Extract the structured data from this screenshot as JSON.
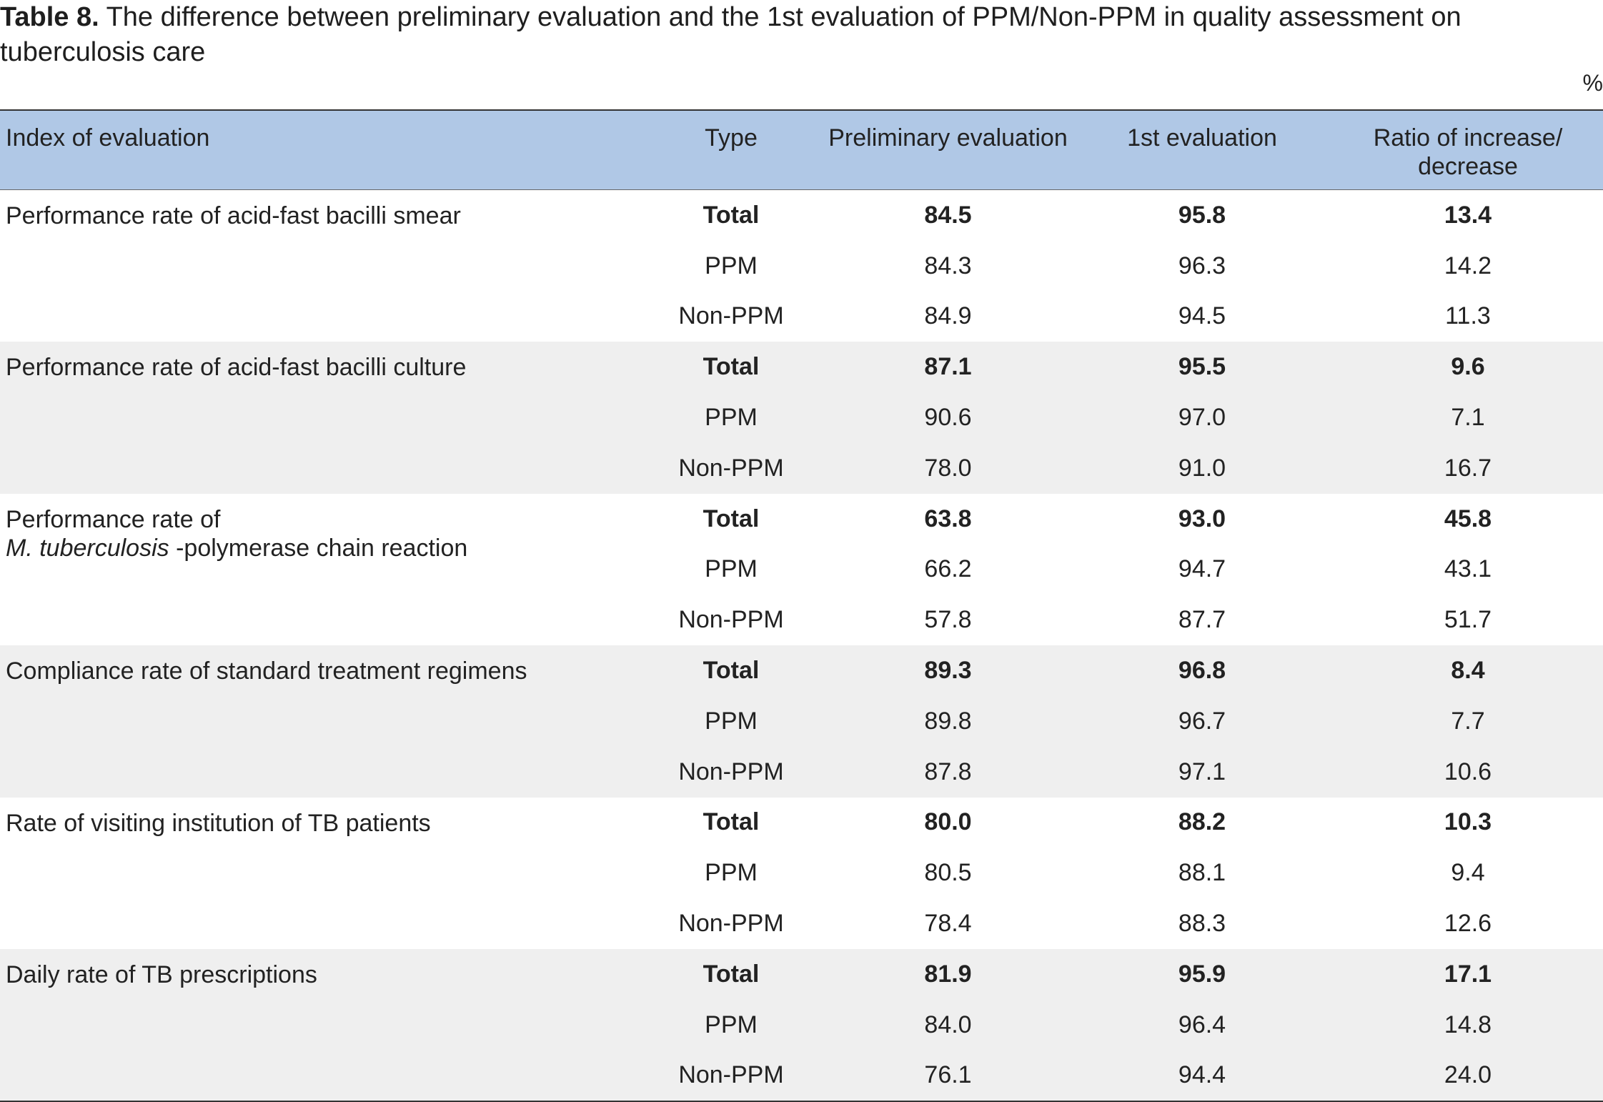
{
  "caption": {
    "label": "Table 8.",
    "text": "The difference between preliminary evaluation and the 1st evaluation of PPM/Non-PPM in quality assessment on tuberculosis care"
  },
  "unit": "%",
  "headers": {
    "index": "Index of evaluation",
    "type": "Type",
    "preliminary": "Preliminary evaluation",
    "first": "1st evaluation",
    "ratio_line1": "Ratio of increase/",
    "ratio_line2": "decrease"
  },
  "groups": [
    {
      "index": "Performance rate of acid-fast bacilli smear",
      "rows": [
        {
          "type": "Total",
          "preliminary": "84.5",
          "first": "95.8",
          "ratio": "13.4"
        },
        {
          "type": "PPM",
          "preliminary": "84.3",
          "first": "96.3",
          "ratio": "14.2"
        },
        {
          "type": "Non-PPM",
          "preliminary": "84.9",
          "first": "94.5",
          "ratio": "11.3"
        }
      ]
    },
    {
      "index": "Performance rate of acid-fast bacilli culture",
      "rows": [
        {
          "type": "Total",
          "preliminary": "87.1",
          "first": "95.5",
          "ratio": "9.6"
        },
        {
          "type": "PPM",
          "preliminary": "90.6",
          "first": "97.0",
          "ratio": "7.1"
        },
        {
          "type": "Non-PPM",
          "preliminary": "78.0",
          "first": "91.0",
          "ratio": "16.7"
        }
      ]
    },
    {
      "index_line1": "Performance rate of",
      "index_italic": "M. tuberculosis",
      "index_rest": " -polymerase chain reaction",
      "rows": [
        {
          "type": "Total",
          "preliminary": "63.8",
          "first": "93.0",
          "ratio": "45.8"
        },
        {
          "type": "PPM",
          "preliminary": "66.2",
          "first": "94.7",
          "ratio": "43.1"
        },
        {
          "type": "Non-PPM",
          "preliminary": "57.8",
          "first": "87.7",
          "ratio": "51.7"
        }
      ]
    },
    {
      "index": "Compliance rate of standard treatment regimens",
      "rows": [
        {
          "type": "Total",
          "preliminary": "89.3",
          "first": "96.8",
          "ratio": "8.4"
        },
        {
          "type": "PPM",
          "preliminary": "89.8",
          "first": "96.7",
          "ratio": "7.7"
        },
        {
          "type": "Non-PPM",
          "preliminary": "87.8",
          "first": "97.1",
          "ratio": "10.6"
        }
      ]
    },
    {
      "index": "Rate of visiting institution of TB patients",
      "rows": [
        {
          "type": "Total",
          "preliminary": "80.0",
          "first": "88.2",
          "ratio": "10.3"
        },
        {
          "type": "PPM",
          "preliminary": "80.5",
          "first": "88.1",
          "ratio": "9.4"
        },
        {
          "type": "Non-PPM",
          "preliminary": "78.4",
          "first": "88.3",
          "ratio": "12.6"
        }
      ]
    },
    {
      "index": "Daily rate of TB prescriptions",
      "rows": [
        {
          "type": "Total",
          "preliminary": "81.9",
          "first": "95.9",
          "ratio": "17.1"
        },
        {
          "type": "PPM",
          "preliminary": "84.0",
          "first": "96.4",
          "ratio": "14.8"
        },
        {
          "type": "Non-PPM",
          "preliminary": "76.1",
          "first": "94.4",
          "ratio": "24.0"
        }
      ]
    }
  ]
}
